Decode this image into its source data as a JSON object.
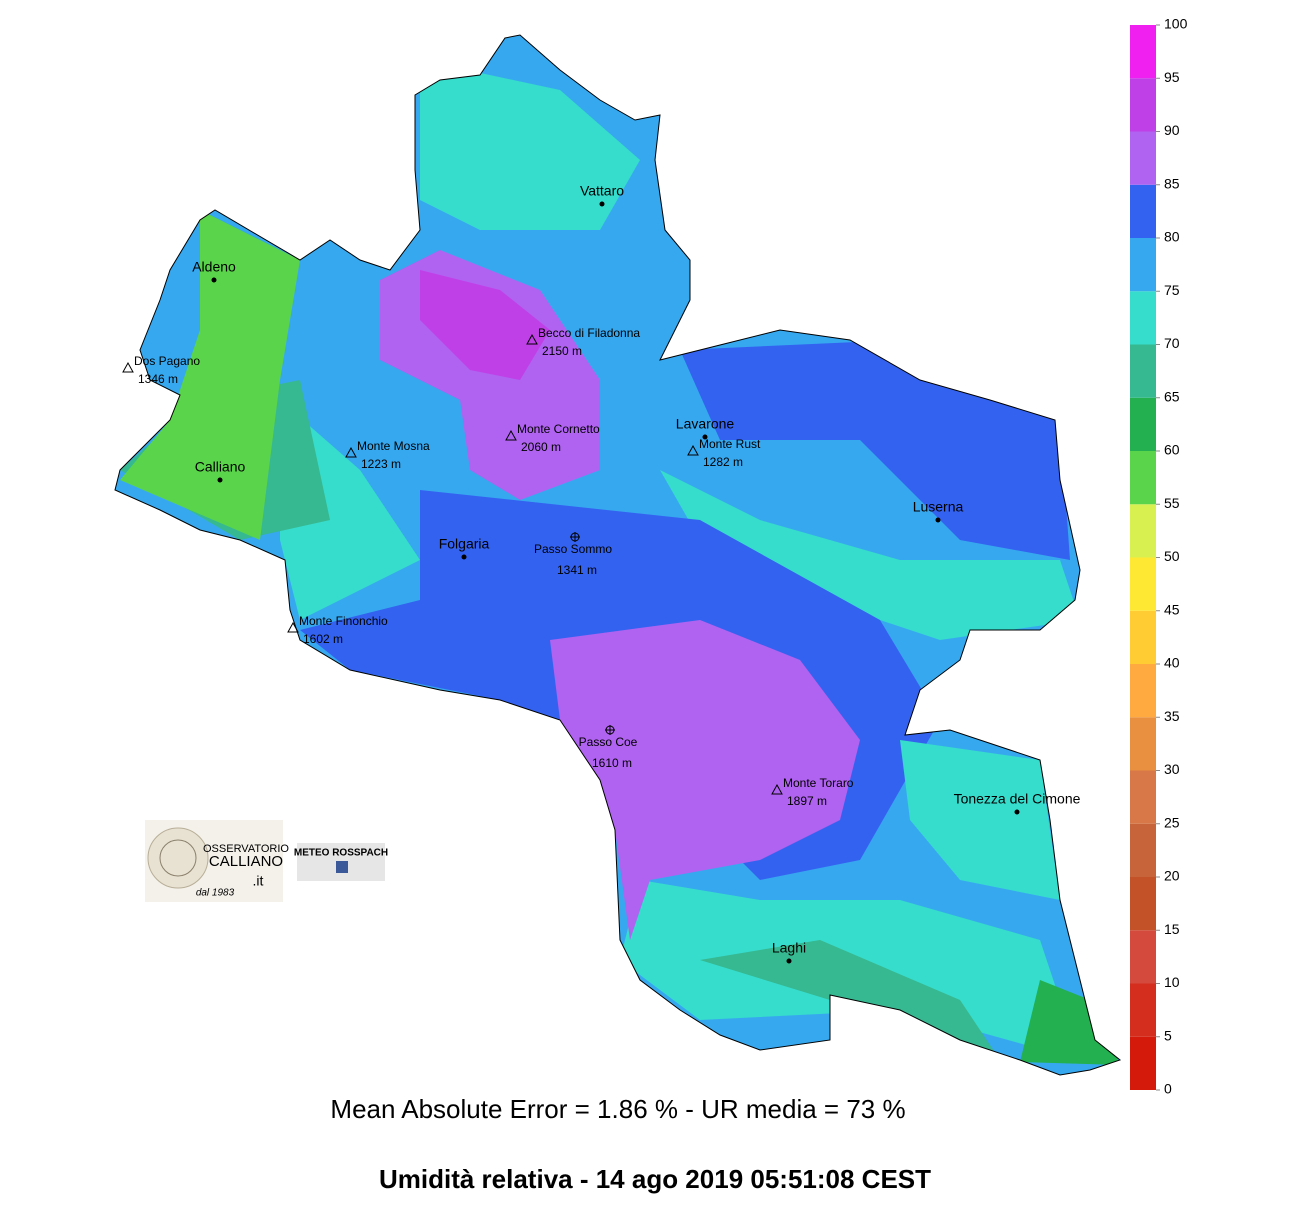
{
  "map": {
    "title": "Umidità relativa  -  14 ago 2019 05:51:08  CEST",
    "subtitle": "Mean Absolute Error = 1.86 %  -  UR media = 73 %",
    "towns": [
      "Vattaro",
      "Aldeno",
      "Calliano",
      "Folgaria",
      "Lavarone",
      "Luserna",
      "Tonezza del Cimone",
      "Laghi"
    ],
    "peaks": [
      {
        "name": "Becco di Filadonna",
        "elevation": "2150 m"
      },
      {
        "name": "Dos Pagano",
        "elevation": "1346 m"
      },
      {
        "name": "Monte Mosna",
        "elevation": "1223 m"
      },
      {
        "name": "Monte Cornetto",
        "elevation": "2060 m"
      },
      {
        "name": "Monte Rust",
        "elevation": "1282 m"
      },
      {
        "name": "Monte Finonchio",
        "elevation": "1602 m"
      },
      {
        "name": "Monte Toraro",
        "elevation": "1897 m"
      }
    ],
    "passes": [
      {
        "name": "Passo Sommo",
        "elevation": "1341 m"
      },
      {
        "name": "Passo Coe",
        "elevation": "1610 m"
      }
    ],
    "colorbar": {
      "ticks": [
        0,
        5,
        10,
        15,
        20,
        25,
        30,
        35,
        40,
        45,
        50,
        55,
        60,
        65,
        70,
        75,
        80,
        85,
        90,
        95,
        100
      ],
      "colors": [
        "#d41a0a",
        "#d42e1e",
        "#d44a3c",
        "#c45228",
        "#c8643a",
        "#d87848",
        "#e89040",
        "#ffaa40",
        "#ffcc33",
        "#ffe833",
        "#d8f050",
        "#5ad44a",
        "#22b050",
        "#36b890",
        "#36dccc",
        "#36a8f0",
        "#3462f0",
        "#b062f0",
        "#c040e8",
        "#f020f0",
        "#ff18a0"
      ]
    },
    "logos": {
      "observatory": [
        "OSSERVATORIO",
        "CALLIANO",
        ".it",
        "dal 1983"
      ],
      "meteo": "METEO ROSSPACH"
    }
  }
}
